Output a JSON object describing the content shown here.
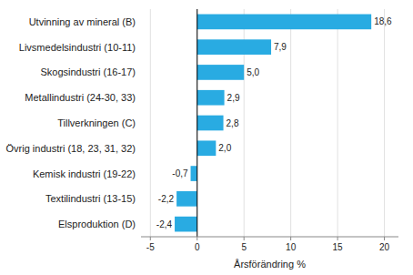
{
  "chart_data": {
    "type": "bar",
    "orientation": "horizontal",
    "categories": [
      "Elsproduktion (D)",
      "Textilindustri (13-15)",
      "Kemisk industri (19-22)",
      "Övrig industri (18, 23, 31, 32)",
      "Tillverkningen (C)",
      "Metallindustri (24-30, 33)",
      "Skogsindustri (16-17)",
      "Livsmedelsindustri (10-11)",
      "Utvinning av mineral (B)"
    ],
    "values": [
      -2.4,
      -2.2,
      -0.7,
      2.0,
      2.8,
      2.9,
      5.0,
      7.9,
      18.6
    ],
    "value_labels": [
      "-2,4",
      "-2,2",
      "-0,7",
      "2,0",
      "2,8",
      "2,9",
      "5,0",
      "7,9",
      "18,6"
    ],
    "data_labels": true,
    "color": "#29abe2",
    "xlabel": "Årsförändring %",
    "xlim": [
      -6,
      21.5
    ],
    "xticks": [
      -5,
      0,
      5,
      10,
      15,
      20
    ],
    "grid": true
  }
}
